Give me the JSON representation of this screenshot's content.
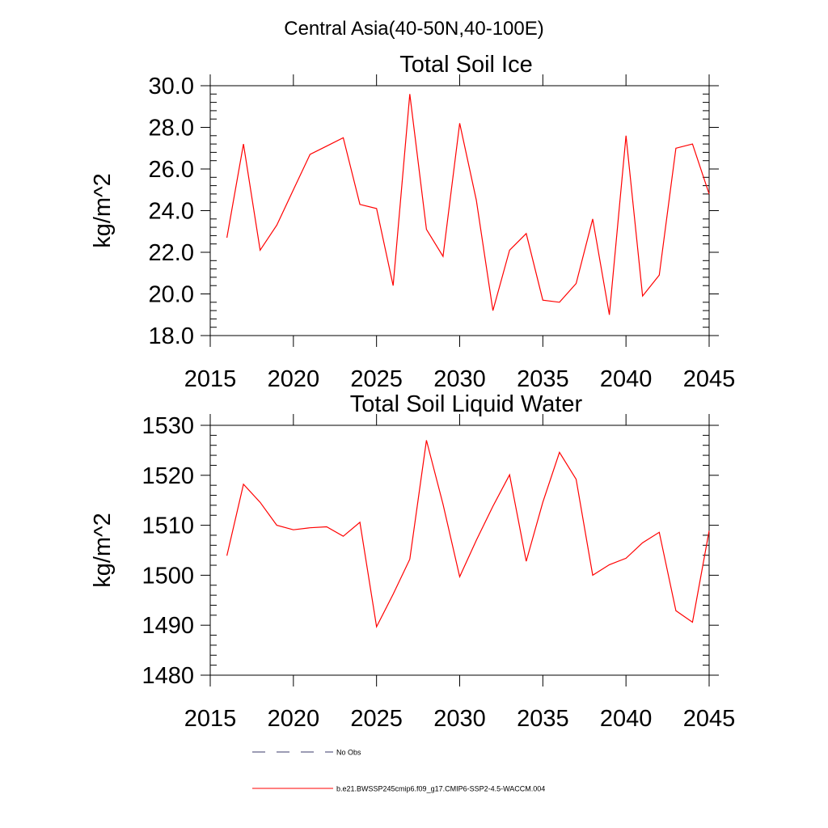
{
  "figure": {
    "main_title": "Central Asia(40-50N,40-100E)"
  },
  "chart_data": [
    {
      "type": "line",
      "title": "Total Soil Ice",
      "ylabel": "kg/m^2",
      "xlabel": "",
      "xlim": [
        2015,
        2045
      ],
      "ylim": [
        18,
        30
      ],
      "xticks": [
        2015,
        2020,
        2025,
        2030,
        2035,
        2040,
        2045
      ],
      "yticks": [
        18,
        20,
        22,
        24,
        26,
        28,
        30
      ],
      "ytick_labels": [
        "18.0",
        "20.0",
        "22.0",
        "24.0",
        "26.0",
        "28.0",
        "30.0"
      ],
      "grid": false,
      "series": [
        {
          "name": "b.e21.BWSSP245cmip6.f09_g17.CMIP6-SSP2-4.5-WACCM.004",
          "color": "#ff0000",
          "x": [
            2016,
            2017,
            2018,
            2019,
            2020,
            2021,
            2022,
            2023,
            2024,
            2025,
            2026,
            2027,
            2028,
            2029,
            2030,
            2031,
            2032,
            2033,
            2034,
            2035,
            2036,
            2037,
            2038,
            2039,
            2040,
            2041,
            2042,
            2043,
            2044,
            2045
          ],
          "y": [
            22.7,
            27.2,
            22.1,
            23.3,
            25.0,
            26.7,
            27.1,
            27.5,
            24.3,
            24.1,
            20.4,
            29.6,
            23.1,
            21.8,
            28.2,
            24.5,
            19.2,
            22.1,
            22.9,
            19.7,
            19.6,
            20.5,
            23.6,
            19.0,
            27.6,
            19.9,
            20.9,
            27.0,
            27.2,
            24.8
          ]
        }
      ]
    },
    {
      "type": "line",
      "title": "Total Soil Liquid Water",
      "ylabel": "kg/m^2",
      "xlabel": "",
      "xlim": [
        2015,
        2045
      ],
      "ylim": [
        1480,
        1530
      ],
      "xticks": [
        2015,
        2020,
        2025,
        2030,
        2035,
        2040,
        2045
      ],
      "yticks": [
        1480,
        1490,
        1500,
        1510,
        1520,
        1530
      ],
      "ytick_labels": [
        "1480",
        "1490",
        "1500",
        "1510",
        "1520",
        "1530"
      ],
      "grid": false,
      "series": [
        {
          "name": "b.e21.BWSSP245cmip6.f09_g17.CMIP6-SSP2-4.5-WACCM.004",
          "color": "#ff0000",
          "x": [
            2016,
            2017,
            2018,
            2019,
            2020,
            2021,
            2022,
            2023,
            2024,
            2025,
            2026,
            2027,
            2028,
            2029,
            2030,
            2031,
            2032,
            2033,
            2034,
            2035,
            2036,
            2037,
            2038,
            2039,
            2040,
            2041,
            2042,
            2043,
            2044,
            2045
          ],
          "y": [
            1503.9,
            1518.2,
            1514.6,
            1510.0,
            1509.1,
            1509.5,
            1509.7,
            1507.8,
            1510.6,
            1489.7,
            1496.2,
            1503.2,
            1527.0,
            1514.2,
            1499.7,
            1507.0,
            1513.8,
            1520.1,
            1502.8,
            1514.6,
            1524.6,
            1519.2,
            1500.0,
            1502.1,
            1503.4,
            1506.5,
            1508.6,
            1492.9,
            1490.6,
            1508.9
          ]
        }
      ]
    }
  ],
  "legend": {
    "placement": "bottom",
    "items": [
      {
        "label": "No Obs",
        "style": "dashed",
        "color": "#3a3a6a"
      },
      {
        "label": "b.e21.BWSSP245cmip6.f09_g17.CMIP6-SSP2-4.5-WACCM.004",
        "style": "solid",
        "color": "#ff0000"
      }
    ]
  }
}
